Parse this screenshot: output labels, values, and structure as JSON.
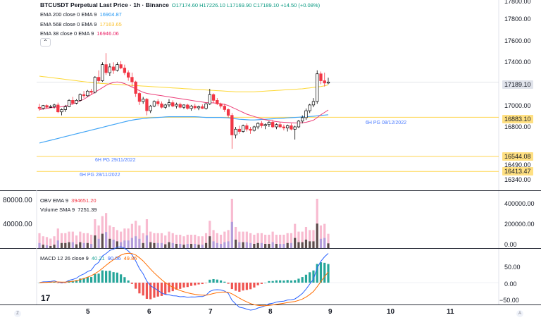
{
  "main_legend": {
    "symbol": "BTCUSDT Perpetual Last Price · 1h · Binance",
    "ohlc": "O17174.60 H17226.10 L17169.90 C17189.10 +14.50 (+0.08%)",
    "ohlc_color": "#089981",
    "indicators": [
      {
        "label": "EMA 200 close 0 EMA 9",
        "value": "16904.87",
        "color": "#2196f3"
      },
      {
        "label": "EMA 568 close 0 EMA 9",
        "value": "17163.65",
        "color": "#fbc02d"
      },
      {
        "label": "EMA 38 close 0 EMA 9",
        "value": "16946.06",
        "color": "#e91e63"
      }
    ],
    "collapse_icon": "chevron-up-icon"
  },
  "price_axis": {
    "ticks": [
      "17800.00",
      "17600.00",
      "17400.00",
      "17000.00",
      "16800.00",
      "16490.00",
      "16340.00"
    ],
    "current_price": "17189.10",
    "current_color": "#e0e3eb",
    "levels": [
      {
        "value": "16883.10",
        "caption": "6H PG 08/12/2022",
        "color": "#ffe082"
      },
      {
        "value": "16544.08",
        "caption": "6H PG 29/11/2022",
        "color": "#ffe082"
      },
      {
        "value": "16413.47",
        "caption": "6H PG 28/11/2022",
        "color": "#ffe082"
      }
    ]
  },
  "volume_pane": {
    "obv_label": "OBV EMA 9",
    "obv_value": "394651.20",
    "obv_color": "#f23645",
    "vol_label": "Volume SMA 9",
    "vol_value": "7251.39",
    "left_ticks": [
      "80000.00",
      "40000.00"
    ],
    "right_ticks": [
      "400000.00",
      "200000.00",
      "0.00"
    ]
  },
  "macd_pane": {
    "label": "MACD 12 26 close 9",
    "values": [
      {
        "v": "40.21",
        "color": "#26a69a"
      },
      {
        "v": "90.06",
        "color": "#2962ff"
      },
      {
        "v": "49.85",
        "color": "#ff6d00"
      }
    ],
    "right_ticks": [
      "50.00",
      "0.00",
      "−50.00"
    ]
  },
  "time_axis": {
    "labels": [
      "5",
      "6",
      "7",
      "8",
      "9",
      "10",
      "11"
    ]
  },
  "footer": {
    "logo": "17",
    "left_corner": "Z",
    "right_corner": "A"
  },
  "colors": {
    "up": "#089981",
    "down": "#f23645",
    "grid": "#f0f3fa",
    "border": "#2a2e39"
  },
  "chart_data": {
    "type": "candlestick",
    "timeframe": "1h",
    "x_labels": [
      "5",
      "6",
      "7",
      "8",
      "9",
      "10",
      "11"
    ],
    "ylim": [
      16250,
      17900
    ],
    "candles_ohlc": [
      [
        16970,
        17000,
        16940,
        16960
      ],
      [
        16960,
        16990,
        16950,
        16985
      ],
      [
        16985,
        16995,
        16960,
        16970
      ],
      [
        16970,
        16990,
        16965,
        16975
      ],
      [
        16975,
        17000,
        16960,
        16990
      ],
      [
        16990,
        17010,
        16920,
        16930
      ],
      [
        16930,
        16960,
        16900,
        16950
      ],
      [
        16950,
        16990,
        16930,
        16975
      ],
      [
        16975,
        17040,
        16970,
        17030
      ],
      [
        17030,
        17060,
        16990,
        17005
      ],
      [
        17005,
        17040,
        16995,
        17030
      ],
      [
        17030,
        17090,
        17020,
        17080
      ],
      [
        17080,
        17110,
        17050,
        17070
      ],
      [
        17070,
        17120,
        17060,
        17110
      ],
      [
        17110,
        17130,
        17080,
        17100
      ],
      [
        17100,
        17240,
        17090,
        17230
      ],
      [
        17230,
        17290,
        17180,
        17200
      ],
      [
        17200,
        17360,
        17190,
        17340
      ],
      [
        17340,
        17440,
        17250,
        17270
      ],
      [
        17270,
        17350,
        17240,
        17320
      ],
      [
        17320,
        17360,
        17260,
        17290
      ],
      [
        17290,
        17360,
        17280,
        17340
      ],
      [
        17340,
        17370,
        17300,
        17310
      ],
      [
        17310,
        17340,
        17250,
        17270
      ],
      [
        17270,
        17290,
        17200,
        17230
      ],
      [
        17230,
        17270,
        17150,
        17190
      ],
      [
        17190,
        17200,
        17060,
        17090
      ],
      [
        17090,
        17100,
        16990,
        17020
      ],
      [
        17020,
        17060,
        17000,
        17040
      ],
      [
        17040,
        17050,
        16900,
        16940
      ],
      [
        16940,
        16990,
        16920,
        16980
      ],
      [
        16980,
        17030,
        16970,
        17020
      ],
      [
        17020,
        17040,
        16980,
        17000
      ],
      [
        17000,
        17020,
        16960,
        16970
      ],
      [
        16970,
        17000,
        16955,
        16990
      ],
      [
        16990,
        17040,
        16970,
        17010
      ],
      [
        17010,
        17030,
        16970,
        16980
      ],
      [
        16980,
        17010,
        16960,
        16995
      ],
      [
        16995,
        17010,
        16960,
        16970
      ],
      [
        16970,
        16995,
        16955,
        16990
      ],
      [
        16990,
        17000,
        16950,
        16960
      ],
      [
        16960,
        16990,
        16940,
        16980
      ],
      [
        16980,
        17000,
        16950,
        16965
      ],
      [
        16965,
        16985,
        16945,
        16975
      ],
      [
        16975,
        16995,
        16955,
        16960
      ],
      [
        16960,
        17010,
        16950,
        17000
      ],
      [
        17000,
        17130,
        16990,
        17080
      ],
      [
        17080,
        17090,
        17010,
        17030
      ],
      [
        17030,
        17050,
        16990,
        17000
      ],
      [
        17000,
        17010,
        16960,
        16980
      ],
      [
        16980,
        17000,
        16930,
        16950
      ],
      [
        16950,
        16960,
        16880,
        16900
      ],
      [
        16900,
        16920,
        16610,
        16730
      ],
      [
        16730,
        16800,
        16700,
        16780
      ],
      [
        16780,
        16810,
        16740,
        16760
      ],
      [
        16760,
        16820,
        16750,
        16810
      ],
      [
        16810,
        16830,
        16760,
        16780
      ],
      [
        16780,
        16800,
        16740,
        16770
      ],
      [
        16770,
        16810,
        16760,
        16800
      ],
      [
        16800,
        16840,
        16780,
        16830
      ],
      [
        16830,
        16850,
        16790,
        16810
      ],
      [
        16810,
        16830,
        16780,
        16820
      ],
      [
        16820,
        16850,
        16800,
        16840
      ],
      [
        16840,
        16860,
        16790,
        16800
      ],
      [
        16800,
        16830,
        16780,
        16820
      ],
      [
        16820,
        16840,
        16790,
        16800
      ],
      [
        16800,
        16820,
        16770,
        16790
      ],
      [
        16790,
        16820,
        16760,
        16810
      ],
      [
        16810,
        16830,
        16770,
        16780
      ],
      [
        16780,
        16810,
        16690,
        16800
      ],
      [
        16800,
        16860,
        16790,
        16850
      ],
      [
        16850,
        16900,
        16830,
        16880
      ],
      [
        16880,
        16960,
        16860,
        16940
      ],
      [
        16940,
        17000,
        16920,
        16990
      ],
      [
        16990,
        17050,
        16970,
        17020
      ],
      [
        17020,
        17290,
        17000,
        17260
      ],
      [
        17260,
        17280,
        17170,
        17200
      ],
      [
        17200,
        17270,
        17150,
        17180
      ],
      [
        17180,
        17226,
        17170,
        17189
      ]
    ],
    "ema_200": [
      16660,
      16668,
      16676,
      16684,
      16692,
      16700,
      16708,
      16716,
      16724,
      16732,
      16740,
      16748,
      16756,
      16764,
      16772,
      16780,
      16788,
      16796,
      16804,
      16812,
      16820,
      16828,
      16836,
      16844,
      16852,
      16858,
      16864,
      16868,
      16872,
      16876,
      16878,
      16880,
      16882,
      16884,
      16886,
      16888,
      16888,
      16888,
      16888,
      16888,
      16888,
      16888,
      16888,
      16886,
      16884,
      16882,
      16882,
      16882,
      16882,
      16882,
      16880,
      16878,
      16874,
      16870,
      16866,
      16864,
      16862,
      16860,
      16860,
      16862,
      16864,
      16866,
      16868,
      16870,
      16872,
      16874,
      16876,
      16878,
      16880,
      16882,
      16884,
      16886,
      16888,
      16890,
      16892,
      16896,
      16900,
      16902,
      16905
    ],
    "ema_568": [
      17240,
      17236,
      17232,
      17228,
      17224,
      17220,
      17216,
      17212,
      17208,
      17204,
      17200,
      17196,
      17192,
      17188,
      17184,
      17180,
      17178,
      17176,
      17174,
      17172,
      17170,
      17168,
      17166,
      17164,
      17162,
      17160,
      17158,
      17156,
      17154,
      17152,
      17150,
      17148,
      17146,
      17144,
      17142,
      17140,
      17138,
      17136,
      17134,
      17132,
      17130,
      17128,
      17126,
      17124,
      17122,
      17120,
      17118,
      17116,
      17114,
      17112,
      17110,
      17108,
      17106,
      17104,
      17104,
      17104,
      17104,
      17104,
      17104,
      17106,
      17108,
      17110,
      17112,
      17114,
      17116,
      17118,
      17120,
      17122,
      17124,
      17126,
      17128,
      17130,
      17134,
      17138,
      17142,
      17146,
      17150,
      17156,
      17164
    ],
    "ema_38": [
      16950,
      16955,
      16960,
      16965,
      16970,
      16972,
      16974,
      16980,
      16990,
      17000,
      17010,
      17025,
      17040,
      17060,
      17080,
      17100,
      17120,
      17140,
      17160,
      17175,
      17185,
      17190,
      17185,
      17175,
      17160,
      17145,
      17130,
      17115,
      17100,
      17090,
      17085,
      17080,
      17075,
      17070,
      17065,
      17060,
      17055,
      17050,
      17045,
      17040,
      17035,
      17030,
      17025,
      17020,
      17015,
      17010,
      17010,
      17008,
      17005,
      17000,
      16995,
      16985,
      16970,
      16955,
      16940,
      16925,
      16910,
      16900,
      16890,
      16880,
      16870,
      16862,
      16856,
      16850,
      16846,
      16842,
      16840,
      16838,
      16836,
      16834,
      16834,
      16836,
      16840,
      16848,
      16858,
      16880,
      16905,
      16925,
      16946
    ]
  }
}
